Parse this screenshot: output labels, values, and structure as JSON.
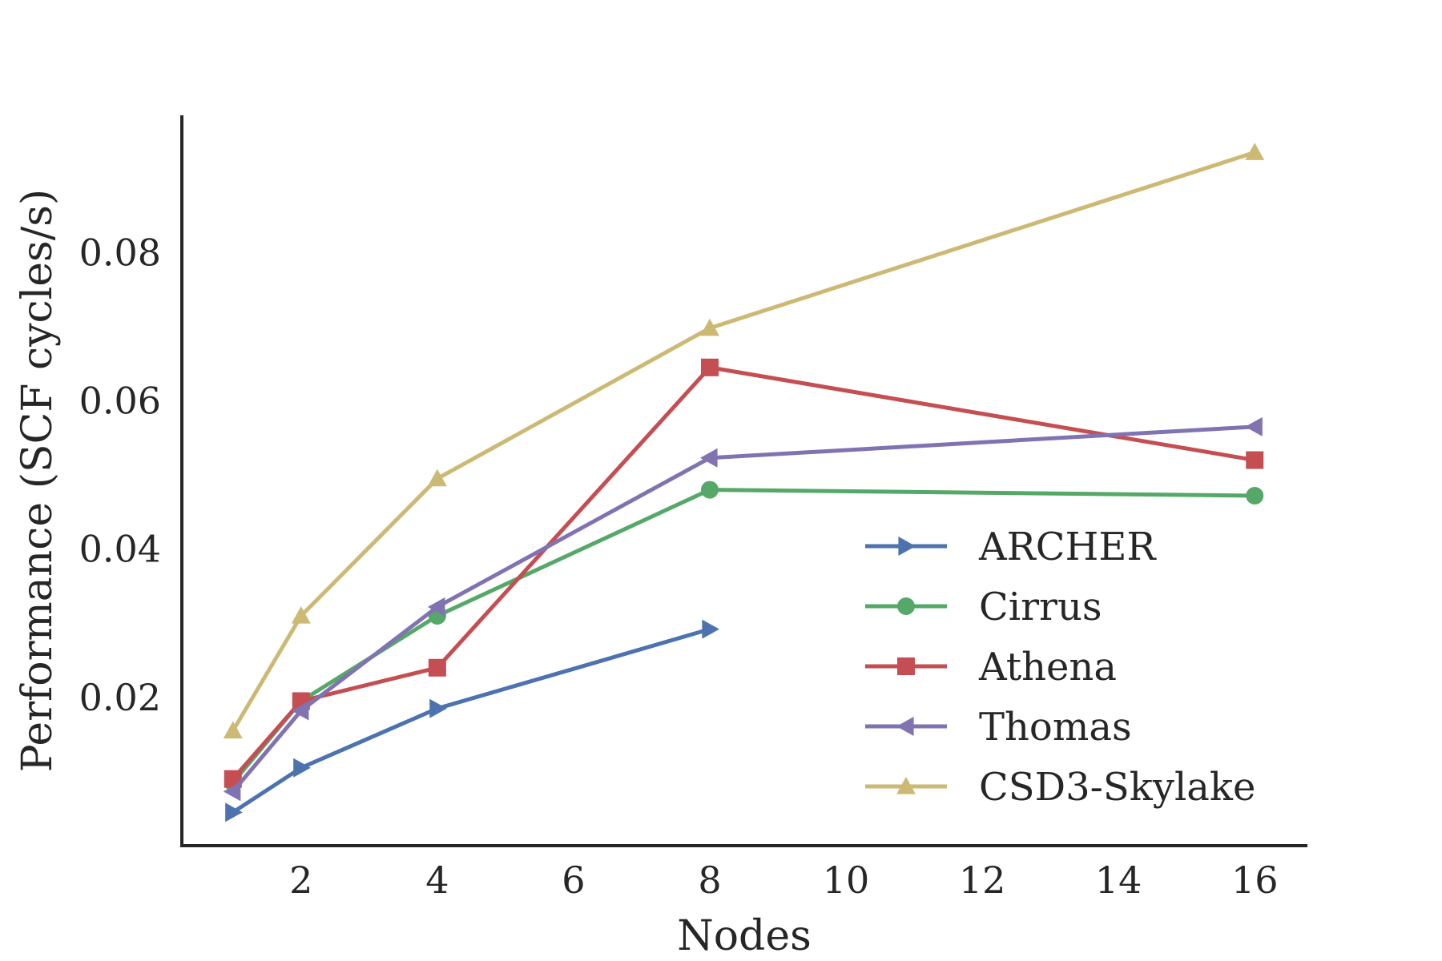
{
  "chart_data": {
    "type": "line",
    "title": "",
    "xlabel": "Nodes",
    "ylabel": "Performance (SCF cycles/s)",
    "xlim": [
      0.25,
      16.75
    ],
    "ylim": [
      0.0,
      0.0985
    ],
    "xticks": [
      2,
      4,
      6,
      8,
      10,
      12,
      14,
      16
    ],
    "yticks": [
      0.02,
      0.04,
      0.06,
      0.08
    ],
    "xtick_labels": [
      "2",
      "4",
      "6",
      "8",
      "10",
      "12",
      "14",
      "16"
    ],
    "ytick_labels": [
      "0.02",
      "0.04",
      "0.06",
      "0.08"
    ],
    "grid": false,
    "legend_position": "center-right",
    "series": [
      {
        "name": "ARCHER",
        "color": "#4c72b0",
        "marker": "triangle-right",
        "x": [
          1,
          2,
          4,
          8
        ],
        "y": [
          0.0045,
          0.0105,
          0.0185,
          0.0292
        ]
      },
      {
        "name": "Cirrus",
        "color": "#55a868",
        "marker": "circle",
        "x": [
          1,
          2,
          4,
          8,
          16
        ],
        "y": [
          0.0085,
          0.0195,
          0.031,
          0.048,
          0.0472
        ]
      },
      {
        "name": "Athena",
        "color": "#c44e52",
        "marker": "square",
        "x": [
          1,
          2,
          4,
          8,
          16
        ],
        "y": [
          0.009,
          0.0195,
          0.024,
          0.0645,
          0.052
        ]
      },
      {
        "name": "Thomas",
        "color": "#8172b2",
        "marker": "triangle-left",
        "x": [
          1,
          2,
          4,
          8,
          16
        ],
        "y": [
          0.0073,
          0.0182,
          0.0322,
          0.0523,
          0.0565
        ]
      },
      {
        "name": "CSD3-Skylake",
        "color": "#ccb974",
        "marker": "triangle-up",
        "x": [
          1,
          2,
          4,
          8,
          16
        ],
        "y": [
          0.0155,
          0.031,
          0.0495,
          0.0698,
          0.0935
        ]
      }
    ]
  }
}
